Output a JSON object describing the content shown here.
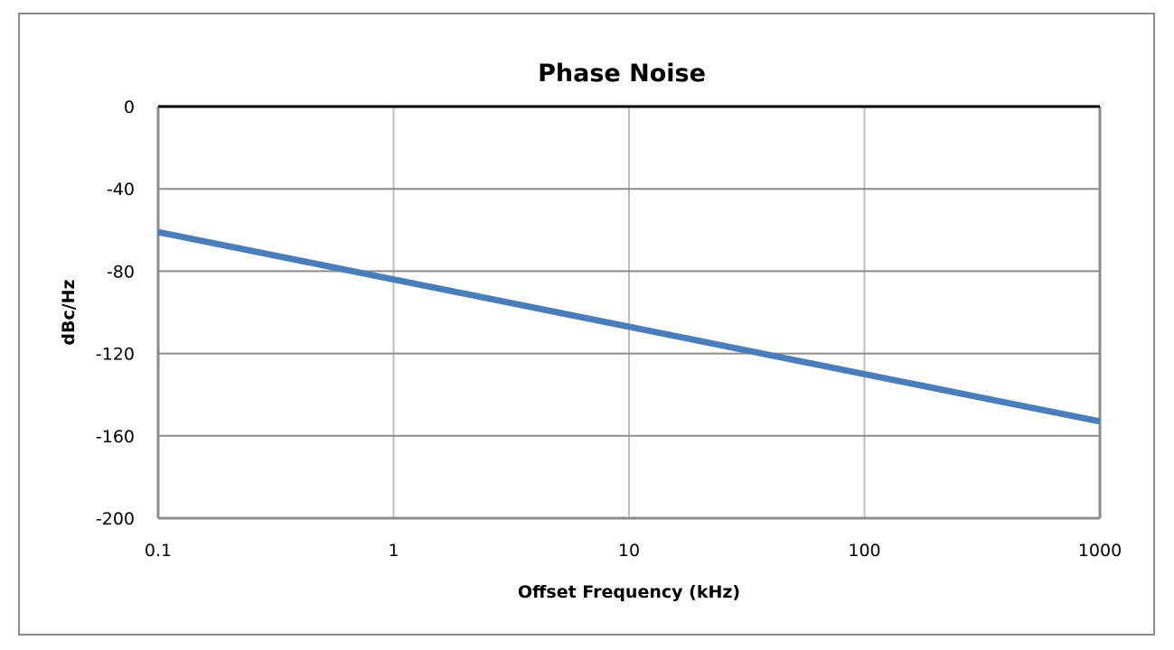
{
  "chart_data": {
    "type": "line",
    "title": "Phase Noise",
    "xlabel": "Offset Frequency (kHz)",
    "ylabel": "dBc/Hz",
    "xscale": "log",
    "xlim": [
      0.1,
      1000
    ],
    "ylim": [
      -200,
      0
    ],
    "xticks": [
      "0.1",
      "1",
      "10",
      "100",
      "1000"
    ],
    "yticks": [
      "0",
      "-40",
      "-80",
      "-120",
      "-160",
      "-200"
    ],
    "grid": true,
    "legend": "none",
    "series": [
      {
        "x": [
          0.1,
          1,
          10,
          100,
          1000
        ],
        "y": [
          -61,
          -84,
          -107,
          -130,
          -153
        ],
        "color": "#4a7ebb"
      }
    ]
  }
}
